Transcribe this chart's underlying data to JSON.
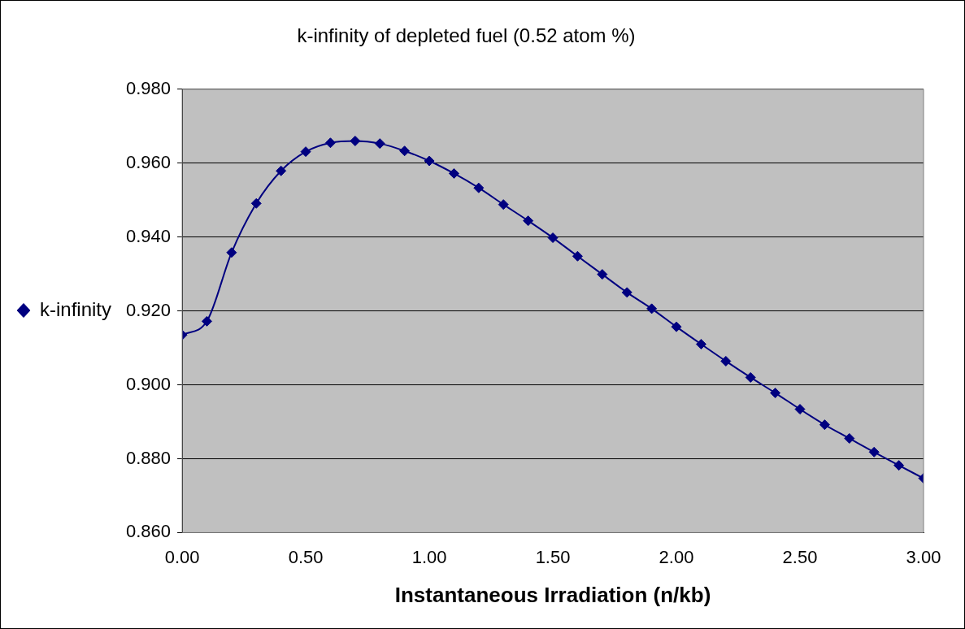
{
  "chart_data": {
    "type": "line",
    "title": "k-infinity of depleted fuel (0.52 atom %)",
    "xlabel": "Instantaneous Irradiation (n/kb)",
    "x": [
      0,
      0.1,
      0.2,
      0.3,
      0.4,
      0.5,
      0.6,
      0.7,
      0.8,
      0.9,
      1.0,
      1.1,
      1.2,
      1.3,
      1.4,
      1.5,
      1.6,
      1.7,
      1.8,
      1.9,
      2.0,
      2.1,
      2.2,
      2.3,
      2.4,
      2.5,
      2.6,
      2.7,
      2.8,
      2.9,
      3.0
    ],
    "series": [
      {
        "name": "k-infinity",
        "color": "#000080",
        "values": [
          0.9135,
          0.9172,
          0.9358,
          0.9491,
          0.9579,
          0.9631,
          0.9655,
          0.966,
          0.9653,
          0.9633,
          0.9606,
          0.9572,
          0.9533,
          0.9488,
          0.9444,
          0.9398,
          0.9348,
          0.9299,
          0.925,
          0.9206,
          0.9157,
          0.911,
          0.9064,
          0.902,
          0.8978,
          0.8934,
          0.8892,
          0.8855,
          0.8818,
          0.8782,
          0.8747
        ]
      }
    ],
    "xlim": [
      0,
      3
    ],
    "xticks": [
      {
        "value": 0,
        "label": "0.00"
      },
      {
        "value": 0.5,
        "label": "0.50"
      },
      {
        "value": 1,
        "label": "1.00"
      },
      {
        "value": 1.5,
        "label": "1.50"
      },
      {
        "value": 2,
        "label": "2.00"
      },
      {
        "value": 2.5,
        "label": "2.50"
      },
      {
        "value": 3,
        "label": "3.00"
      }
    ],
    "ylim": [
      0.86,
      0.98
    ],
    "yticks": [
      {
        "value": 0.86,
        "label": "0.860"
      },
      {
        "value": 0.88,
        "label": "0.880"
      },
      {
        "value": 0.9,
        "label": "0.900"
      },
      {
        "value": 0.92,
        "label": "0.920"
      },
      {
        "value": 0.94,
        "label": "0.940"
      },
      {
        "value": 0.96,
        "label": "0.960"
      },
      {
        "value": 0.98,
        "label": "0.980"
      }
    ],
    "grid": "y",
    "legend": "left",
    "marker": "diamond",
    "line_style": "solid"
  }
}
